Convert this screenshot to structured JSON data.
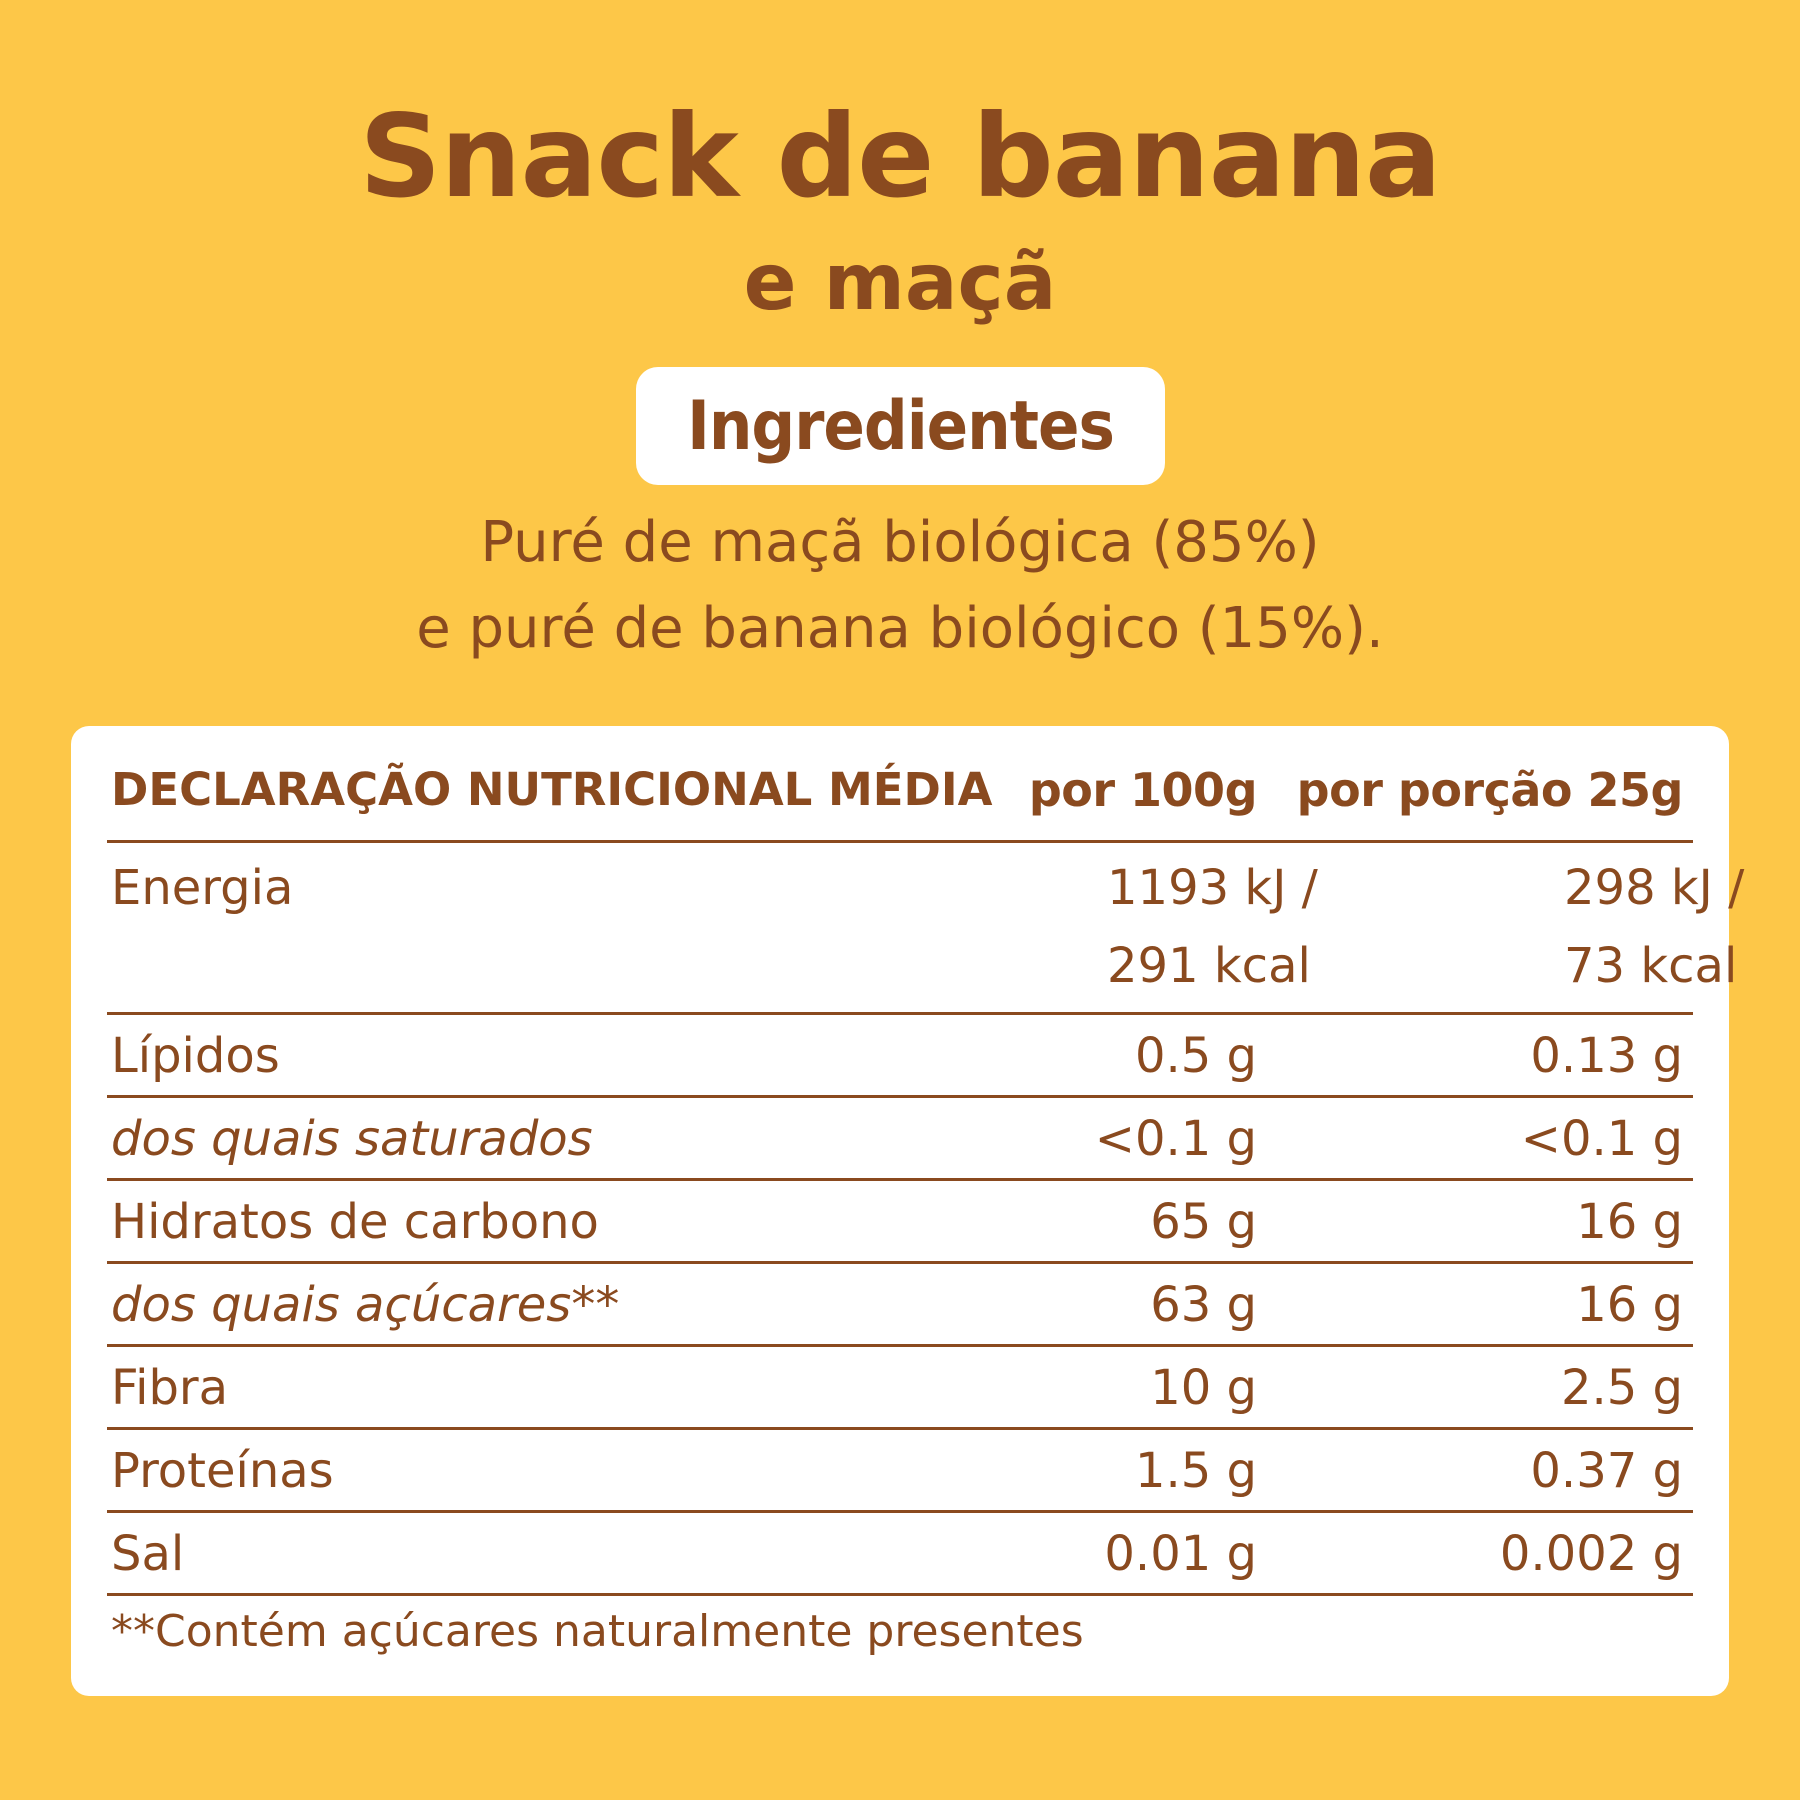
{
  "title": {
    "line1": "Snack de banana",
    "line2": "e maçã"
  },
  "ingredients": {
    "heading": "Ingredientes",
    "line1": "Puré de maçã biológica (85%)",
    "line2": "e puré de banana biológico (15%)."
  },
  "nutrition": {
    "headers": {
      "name": "DECLARAÇÃO NUTRICIONAL MÉDIA",
      "per100": "por 100g",
      "perPortion": "por porção 25g"
    },
    "energy": {
      "name": "Energia",
      "per100_kj": "1193 kJ /",
      "per100_kcal": "291 kcal",
      "portion_kj": "298 kJ /",
      "portion_kcal": "73 kcal"
    },
    "rows": [
      {
        "name": "Lípidos",
        "per100": "0.5 g",
        "portion": "0.13 g",
        "italic": false
      },
      {
        "name": "dos quais saturados",
        "per100": "<0.1 g",
        "portion": "<0.1 g",
        "italic": true
      },
      {
        "name": "Hidratos de carbono",
        "per100": "65 g",
        "portion": "16 g",
        "italic": false
      },
      {
        "name": "dos quais açúcares**",
        "per100": "63 g",
        "portion": "16 g",
        "italic": true
      },
      {
        "name": "Fibra",
        "per100": "10 g",
        "portion": "2.5 g",
        "italic": false
      },
      {
        "name": "Proteínas",
        "per100": "1.5 g",
        "portion": "0.37 g",
        "italic": false
      },
      {
        "name": "Sal",
        "per100": "0.01 g",
        "portion": "0.002 g",
        "italic": false
      }
    ],
    "footnote": "**Contém açúcares naturalmente presentes"
  },
  "colors": {
    "background": "#fdc748",
    "text": "#8a4a1f",
    "panel": "#ffffff"
  }
}
